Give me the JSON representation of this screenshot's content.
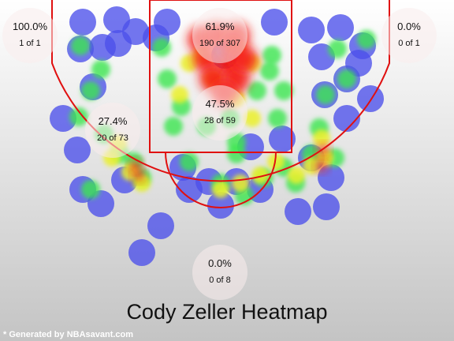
{
  "chart_data": {
    "type": "heatmap",
    "title": "Cody Zeller Heatmap",
    "zones": [
      {
        "zone": "Left Corner 3",
        "pct": "100.0%",
        "made_of_attempts": "1 of 1",
        "made": 1,
        "attempts": 1
      },
      {
        "zone": "Restricted Area",
        "pct": "61.9%",
        "made_of_attempts": "190 of 307",
        "made": 190,
        "attempts": 307
      },
      {
        "zone": "Right Corner 3",
        "pct": "0.0%",
        "made_of_attempts": "0 of 1",
        "made": 0,
        "attempts": 1
      },
      {
        "zone": "Left Mid-Range",
        "pct": "27.4%",
        "made_of_attempts": "20 of 73",
        "made": 20,
        "attempts": 73
      },
      {
        "zone": "In The Paint (Non-RA)",
        "pct": "47.5%",
        "made_of_attempts": "28 of 59",
        "made": 28,
        "attempts": 59
      },
      {
        "zone": "Above the Break 3",
        "pct": "0.0%",
        "made_of_attempts": "0 of 8",
        "made": 0,
        "attempts": 8
      }
    ],
    "legend": "none",
    "grid": false
  },
  "footer": {
    "credit": "* Generated by NBAsavant.com"
  }
}
